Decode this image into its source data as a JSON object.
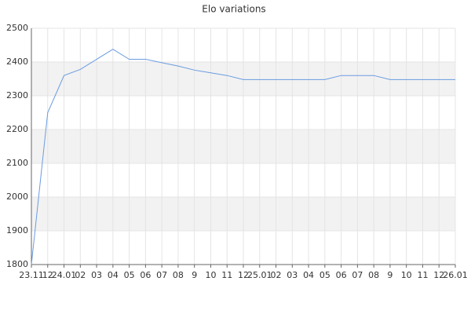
{
  "chart_data": {
    "type": "line",
    "title": "Elo variations",
    "categories": [
      "23.11",
      "12",
      "24.01",
      "02",
      "03",
      "04",
      "05",
      "06",
      "07",
      "08",
      "9",
      "10",
      "11",
      "12",
      "25.01",
      "02",
      "03",
      "04",
      "05",
      "06",
      "07",
      "08",
      "9",
      "10",
      "11",
      "12",
      "26.01"
    ],
    "values": [
      1800,
      2250,
      2360,
      2378,
      2408,
      2438,
      2408,
      2408,
      2398,
      2388,
      2376,
      2368,
      2360,
      2348,
      2348,
      2348,
      2348,
      2348,
      2348,
      2360,
      2360,
      2360,
      2348,
      2348,
      2348,
      2348,
      2348
    ],
    "color": "#6a9be0",
    "ylim": [
      1800,
      2500
    ],
    "yticks": [
      1800,
      1900,
      2000,
      2100,
      2200,
      2300,
      2400,
      2500
    ],
    "grid": true,
    "alternate_bands": true
  }
}
